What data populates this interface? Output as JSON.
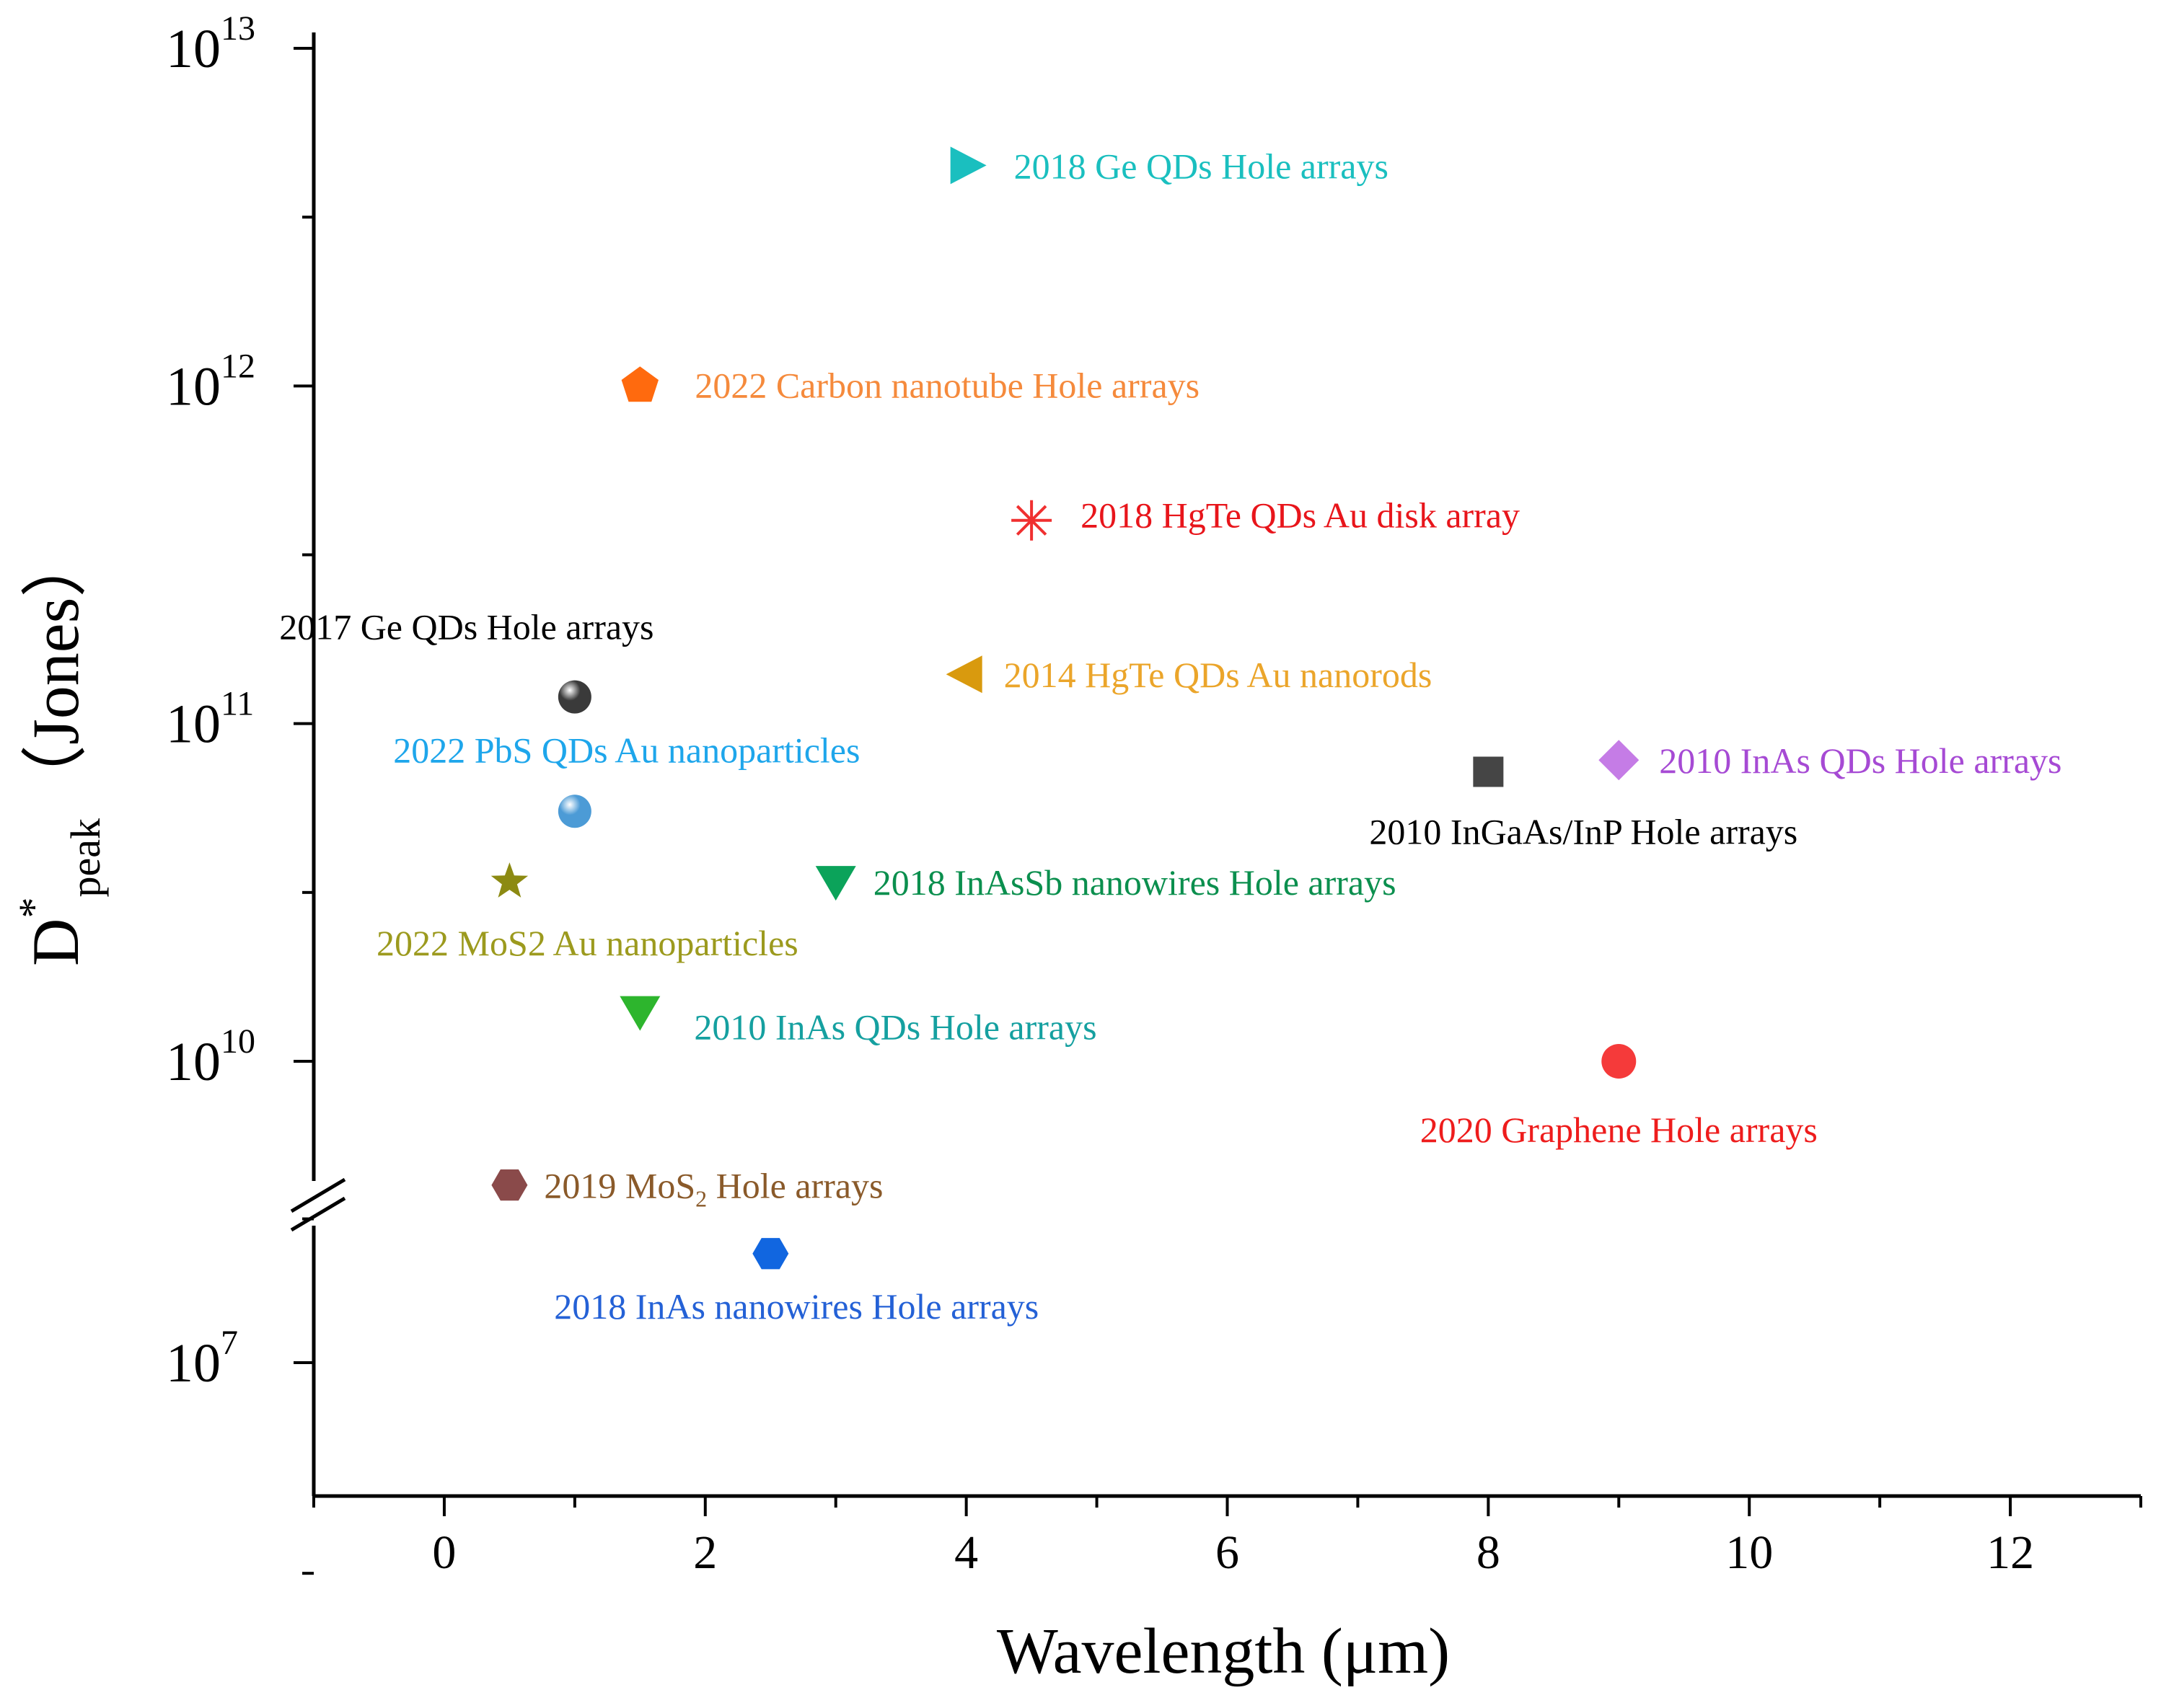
{
  "chart_data": {
    "type": "scatter",
    "title": "",
    "xlabel": "Wavelength (μm)",
    "ylabel_main": "D",
    "ylabel_sup": "*",
    "ylabel_sub": "peak",
    "ylabel_unit": "（Jones）",
    "xlim": [
      -1,
      13
    ],
    "x_ticks": [
      0,
      2,
      4,
      6,
      8,
      10,
      12
    ],
    "x_tick_labels": [
      "0",
      "2",
      "4",
      "6",
      "8",
      "10",
      "12"
    ],
    "y_scale": "log-broken",
    "y_break": "between 10^7 and 10^10",
    "y_ticks": [
      {
        "base": "10",
        "exp": "13",
        "value": 10000000000000.0
      },
      {
        "base": "10",
        "exp": "12",
        "value": 1000000000000.0
      },
      {
        "base": "10",
        "exp": "11",
        "value": 100000000000.0
      },
      {
        "base": "10",
        "exp": "10",
        "value": 10000000000.0
      },
      {
        "base": "10",
        "exp": "7",
        "value": 10000000.0
      }
    ],
    "points": [
      {
        "x": 4.0,
        "y": 4500000000000.0,
        "marker": "triangle-right",
        "color": "#1ABFBF",
        "label_parts": [
          "2018 Ge QDs Hole arrays"
        ],
        "label_color": "#1ABFBF"
      },
      {
        "x": 1.5,
        "y": 1000000000000.0,
        "marker": "pentagon",
        "color": "#FF6A0E",
        "label_parts": [
          "2022 Carbon nanotube Hole arrays"
        ],
        "label_color": "#F58A3C"
      },
      {
        "x": 4.5,
        "y": 400000000000.0,
        "marker": "asterisk",
        "color": "#F03030",
        "label_parts": [
          "2018 HgTe QDs Au disk array"
        ],
        "label_color": "#E8151B"
      },
      {
        "x": 1.0,
        "y": 120000000000.0,
        "marker": "sphere",
        "color": "#3A3A3A",
        "label_parts": [
          "2017 Ge QDs Hole arrays"
        ],
        "label_color": "#000000"
      },
      {
        "x": 4.0,
        "y": 140000000000.0,
        "marker": "triangle-left",
        "color": "#D99A0E",
        "label_parts": [
          "2014 HgTe QDs Au nanorods"
        ],
        "label_color": "#EBA52A"
      },
      {
        "x": 1.0,
        "y": 55000000000.0,
        "marker": "sphere",
        "color": "#4C9BD6",
        "label_parts": [
          "2022 PbS QDs Au nanoparticles"
        ],
        "label_color": "#1EA6EB"
      },
      {
        "x": 8.0,
        "y": 72000000000.0,
        "marker": "square",
        "color": "#454545",
        "label_parts": [
          "2010 InGaAs/InP Hole arrays"
        ],
        "label_color": "#000000"
      },
      {
        "x": 9.0,
        "y": 78000000000.0,
        "marker": "diamond",
        "color": "#C57CE6",
        "label_parts": [
          "2010 InAs QDs Hole arrays"
        ],
        "label_color": "#A64AD4"
      },
      {
        "x": 0.5,
        "y": 34000000000.0,
        "marker": "star",
        "color": "#8C8A12",
        "label_parts": [
          "2022 MoS2 Au nanoparticles"
        ],
        "label_color": "#9C9A1E"
      },
      {
        "x": 3.0,
        "y": 34000000000.0,
        "marker": "triangle-down",
        "color": "#0BA35A",
        "label_parts": [
          "2018 InAsSb nanowires Hole arrays"
        ],
        "label_color": "#0B8F4E"
      },
      {
        "x": 1.5,
        "y": 14000000000.0,
        "marker": "triangle-down",
        "color": "#2DB52D",
        "label_parts": [
          "2010 InAs QDs Hole arrays"
        ],
        "label_color": "#15A0A0"
      },
      {
        "x": 9.0,
        "y": 10000000000.0,
        "marker": "circle",
        "color": "#F53A3A",
        "label_parts": [
          "2020 Graphene Hole arrays"
        ],
        "label_color": "#EE1C1C"
      },
      {
        "x": 0.5,
        "y": 4300000000.0,
        "marker": "hexagon",
        "color": "#8A4A4A",
        "label_parts": [
          "2019 MoS",
          "2",
          " Hole arrays"
        ],
        "label_color": "#8A5A2A"
      },
      {
        "x": 2.5,
        "y": 23000000.0,
        "marker": "hexagon",
        "color": "#1166E0",
        "label_parts": [
          "2018 InAs nanowires Hole arrays"
        ],
        "label_color": "#2461D6"
      }
    ]
  }
}
